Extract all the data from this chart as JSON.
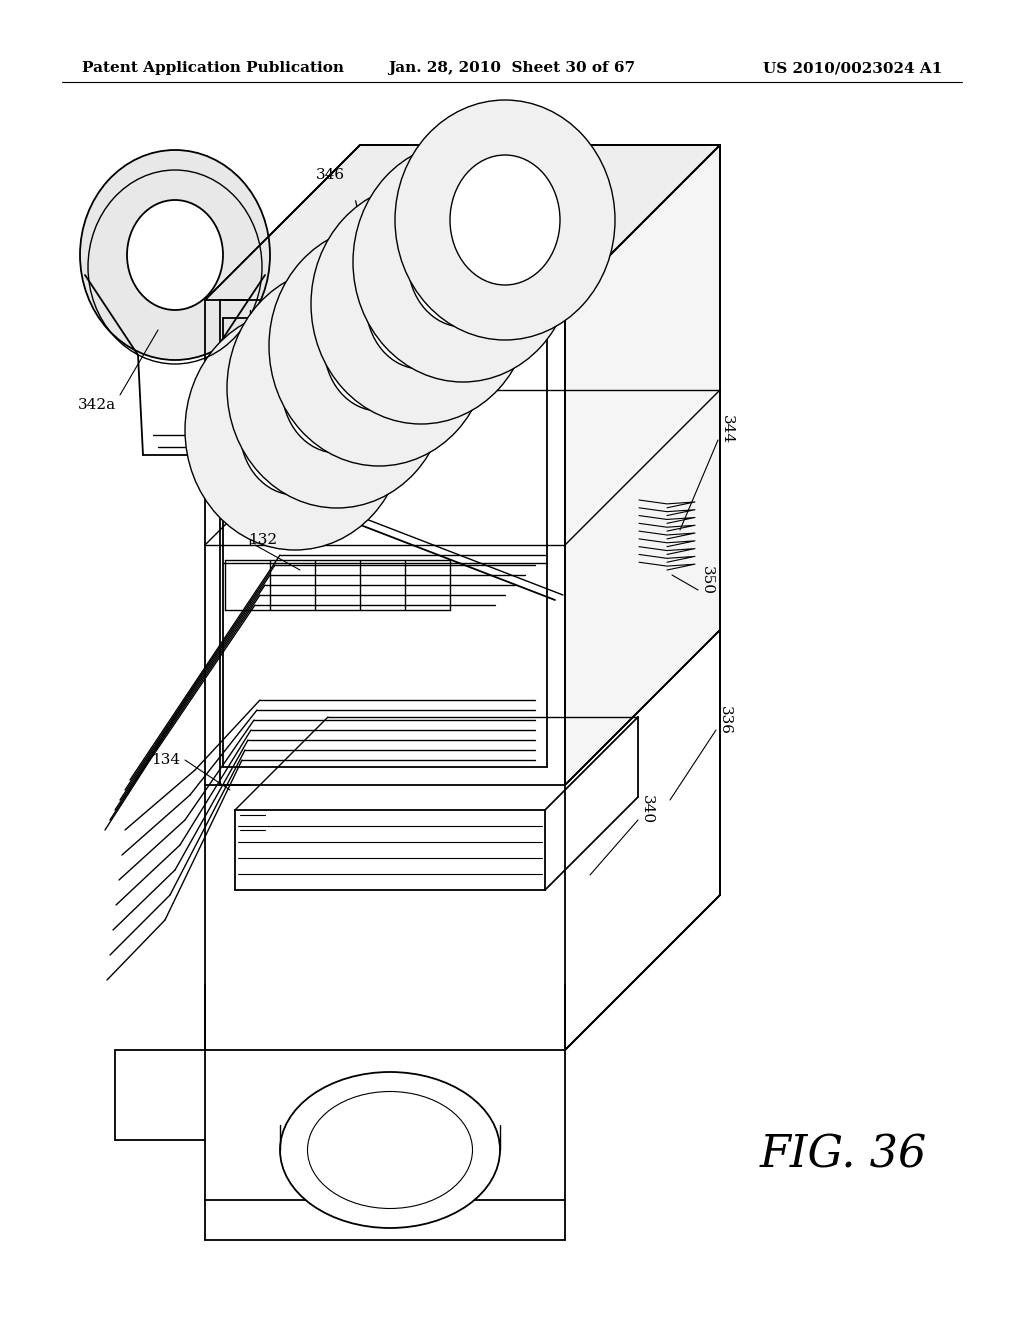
{
  "background_color": "#ffffff",
  "header_left": "Patent Application Publication",
  "header_center": "Jan. 28, 2010  Sheet 30 of 67",
  "header_right": "US 2010/0023024 A1",
  "figure_label": "FIG. 36",
  "line_color": "#000000",
  "text_color": "#000000",
  "header_font_size": 11,
  "label_font_size": 11,
  "fig_label_font_size": 32
}
